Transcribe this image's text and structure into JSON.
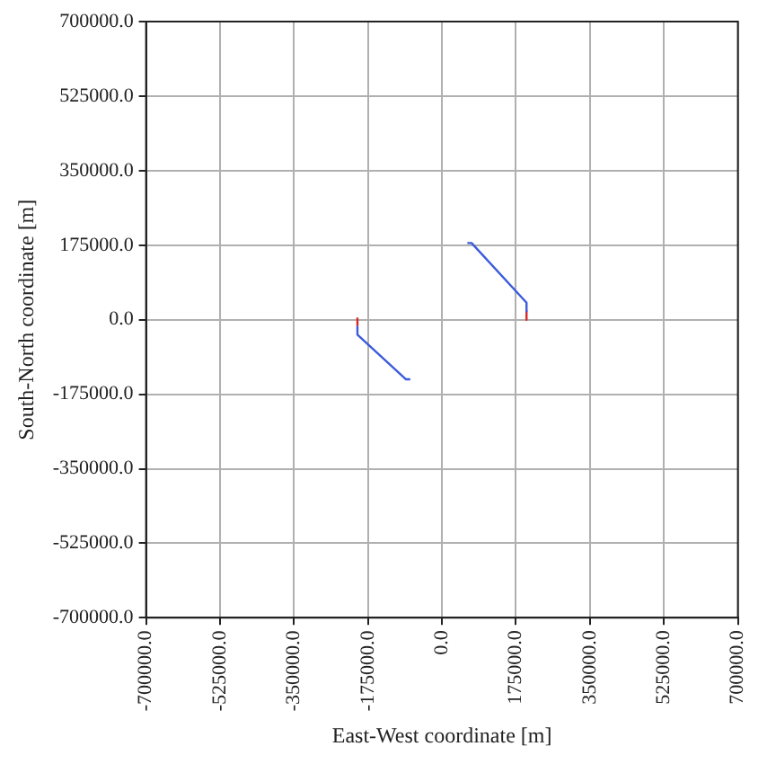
{
  "chart_data": {
    "type": "line",
    "xlabel": "East-West coordinate [m]",
    "ylabel": "South-North coordinate [m]",
    "series": [
      {
        "color": "#3b5bdb",
        "x": [
          -75000,
          -85000,
          -200000,
          -200000
        ],
        "values": [
          -140000,
          -140000,
          -35000,
          -15000
        ]
      },
      {
        "color": "#d62728",
        "x": [
          -200000,
          -200000
        ],
        "values": [
          -15000,
          5000
        ]
      },
      {
        "color": "#3b5bdb",
        "x": [
          60000,
          70000,
          200000,
          200000
        ],
        "values": [
          180000,
          180000,
          40000,
          20000
        ]
      },
      {
        "color": "#d62728",
        "x": [
          200000,
          200000
        ],
        "values": [
          20000,
          0
        ]
      }
    ],
    "xlim": [
      -700000,
      700000
    ],
    "ylim": [
      -700000,
      700000
    ],
    "xticks": [
      {
        "value": -700000,
        "label": "-700000.0"
      },
      {
        "value": -525000,
        "label": "-525000.0"
      },
      {
        "value": -350000,
        "label": "-350000.0"
      },
      {
        "value": -175000,
        "label": "-175000.0"
      },
      {
        "value": 0,
        "label": "0.0"
      },
      {
        "value": 175000,
        "label": "175000.0"
      },
      {
        "value": 350000,
        "label": "350000.0"
      },
      {
        "value": 525000,
        "label": "525000.0"
      },
      {
        "value": 700000,
        "label": "700000.0"
      }
    ],
    "yticks": [
      {
        "value": -700000,
        "label": "-700000.0"
      },
      {
        "value": -525000,
        "label": "-525000.0"
      },
      {
        "value": -350000,
        "label": "-350000.0"
      },
      {
        "value": -175000,
        "label": "-175000.0"
      },
      {
        "value": 0,
        "label": "0.0"
      },
      {
        "value": 175000,
        "label": "175000.0"
      },
      {
        "value": 350000,
        "label": "350000.0"
      },
      {
        "value": 525000,
        "label": "525000.0"
      },
      {
        "value": 700000,
        "label": "700000.0"
      }
    ],
    "grid": true,
    "marker": "none",
    "line_style": "solid"
  }
}
